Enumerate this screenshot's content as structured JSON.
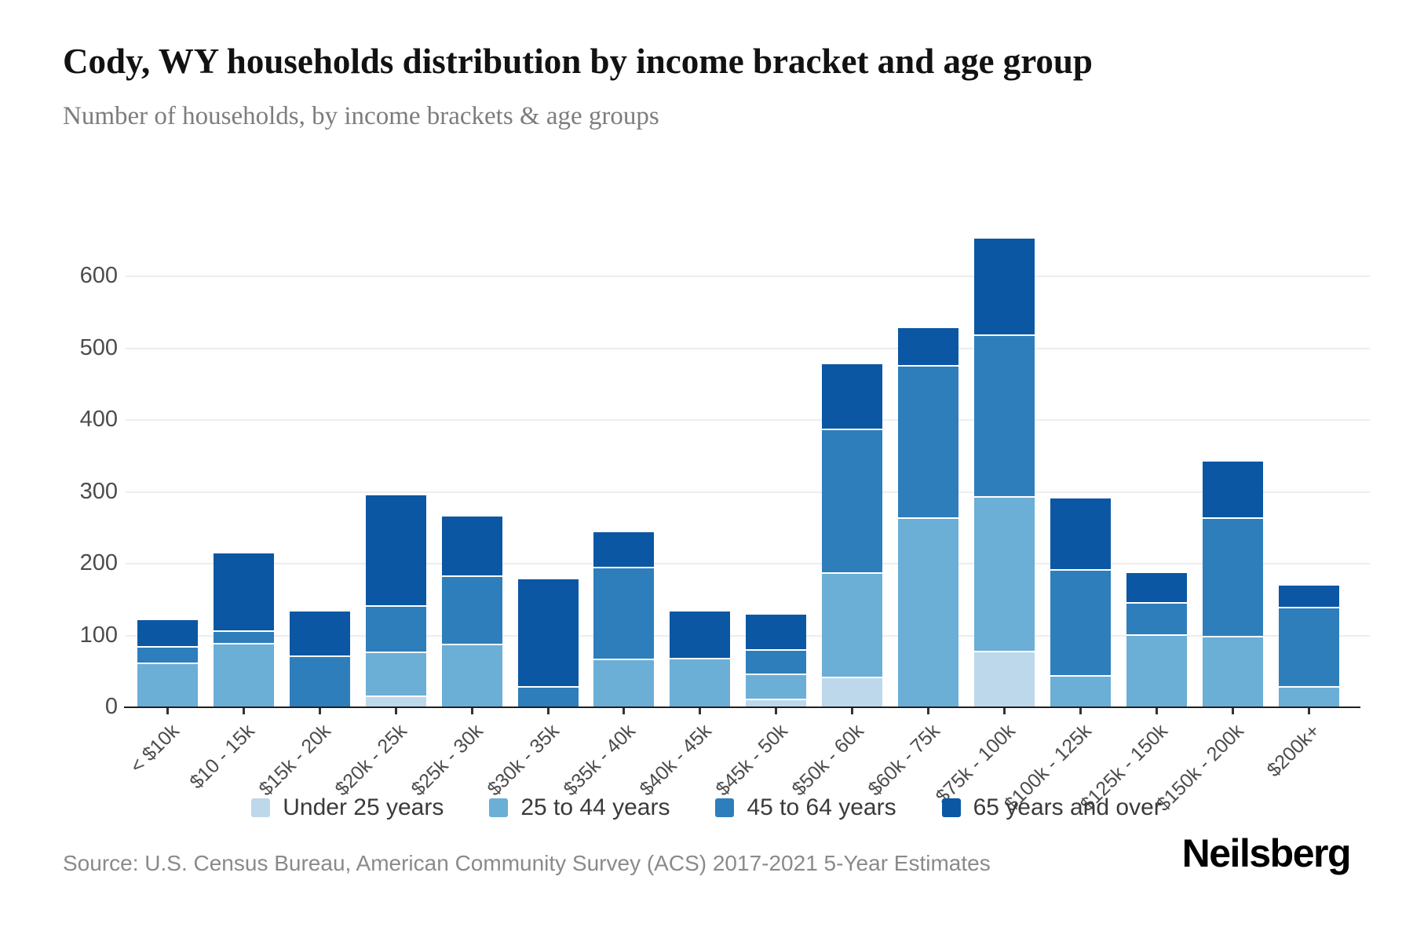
{
  "title": "Cody, WY households distribution by income bracket and age group",
  "subtitle": "Number of households, by income brackets & age groups",
  "source": "Source: U.S. Census Bureau, American Community Survey (ACS) 2017-2021 5-Year Estimates",
  "logo": "Neilsberg",
  "chart_data": {
    "type": "bar",
    "stacked": true,
    "title": "Cody, WY households distribution by income bracket and age group",
    "xlabel": "",
    "ylabel": "",
    "ylim": [
      0,
      600
    ],
    "yticks": [
      0,
      100,
      200,
      300,
      400,
      500,
      600
    ],
    "grid": true,
    "legend_position": "bottom",
    "categories": [
      "< $10k",
      "$10 - 15k",
      "$15k - 20k",
      "$20k - 25k",
      "$25k - 30k",
      "$30k - 35k",
      "$35k - 40k",
      "$40k - 45k",
      "$45k - 50k",
      "$50k - 60k",
      "$60k - 75k",
      "$75k - 100k",
      "$100k - 125k",
      "$125k - 150k",
      "$150k - 200k",
      "$200k+"
    ],
    "series": [
      {
        "name": "Under 25 years",
        "color": "#bdd8ea",
        "values": [
          0,
          0,
          0,
          16,
          0,
          0,
          0,
          0,
          12,
          43,
          0,
          79,
          0,
          0,
          0,
          0
        ]
      },
      {
        "name": "25 to 44 years",
        "color": "#6baed6",
        "values": [
          62,
          90,
          0,
          62,
          89,
          0,
          68,
          69,
          35,
          145,
          264,
          215,
          45,
          102,
          99,
          30
        ]
      },
      {
        "name": "45 to 64 years",
        "color": "#2e7ebc",
        "values": [
          23,
          17,
          72,
          64,
          95,
          29,
          128,
          0,
          34,
          200,
          212,
          225,
          147,
          45,
          166,
          110
        ]
      },
      {
        "name": "65 years and over",
        "color": "#0b57a4",
        "values": [
          38,
          109,
          63,
          155,
          84,
          151,
          50,
          67,
          50,
          92,
          54,
          136,
          101,
          42,
          79,
          32
        ]
      }
    ],
    "totals": [
      123,
      216,
      135,
      297,
      268,
      180,
      246,
      136,
      131,
      480,
      530,
      655,
      293,
      189,
      344,
      172
    ]
  }
}
